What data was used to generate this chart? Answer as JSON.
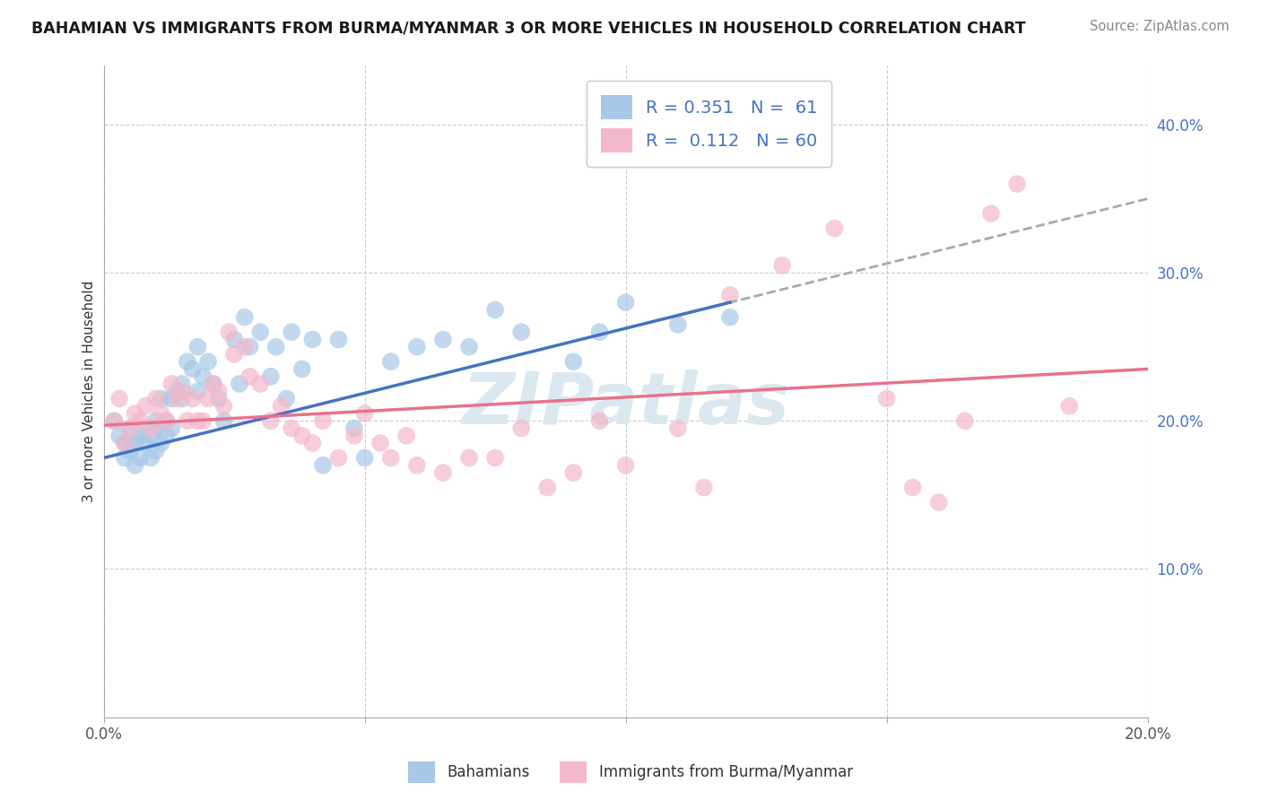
{
  "title": "BAHAMIAN VS IMMIGRANTS FROM BURMA/MYANMAR 3 OR MORE VEHICLES IN HOUSEHOLD CORRELATION CHART",
  "source": "Source: ZipAtlas.com",
  "ylabel": "3 or more Vehicles in Household",
  "x_min": 0.0,
  "x_max": 0.2,
  "y_min": 0.0,
  "y_max": 0.44,
  "x_ticks": [
    0.0,
    0.05,
    0.1,
    0.15,
    0.2
  ],
  "x_tick_labels": [
    "0.0%",
    "",
    "",
    "",
    "20.0%"
  ],
  "y_ticks_right": [
    0.1,
    0.2,
    0.3,
    0.4
  ],
  "y_tick_labels_right": [
    "10.0%",
    "20.0%",
    "30.0%",
    "40.0%"
  ],
  "blue_color": "#a8c8e8",
  "pink_color": "#f4b8cc",
  "blue_line_color": "#4472c4",
  "pink_line_color": "#e8728c",
  "legend_blue_label": "R = 0.351   N =  61",
  "legend_pink_label": "R =  0.112   N = 60",
  "legend_bottom_blue": "Bahamians",
  "legend_bottom_pink": "Immigrants from Burma/Myanmar",
  "watermark_text": "ZIPatlas",
  "watermark_color": "#dce8f0",
  "background_color": "#ffffff",
  "grid_color": "#cccccc",
  "blue_scatter_x": [
    0.002,
    0.003,
    0.004,
    0.004,
    0.005,
    0.005,
    0.006,
    0.006,
    0.007,
    0.007,
    0.008,
    0.008,
    0.009,
    0.009,
    0.01,
    0.01,
    0.01,
    0.011,
    0.011,
    0.012,
    0.012,
    0.013,
    0.013,
    0.014,
    0.015,
    0.015,
    0.016,
    0.017,
    0.018,
    0.018,
    0.019,
    0.02,
    0.021,
    0.022,
    0.023,
    0.025,
    0.026,
    0.027,
    0.028,
    0.03,
    0.032,
    0.033,
    0.035,
    0.036,
    0.038,
    0.04,
    0.042,
    0.045,
    0.048,
    0.05,
    0.055,
    0.06,
    0.065,
    0.07,
    0.075,
    0.08,
    0.09,
    0.095,
    0.1,
    0.11,
    0.12
  ],
  "blue_scatter_y": [
    0.2,
    0.19,
    0.185,
    0.175,
    0.18,
    0.195,
    0.17,
    0.185,
    0.175,
    0.19,
    0.195,
    0.185,
    0.175,
    0.19,
    0.18,
    0.195,
    0.2,
    0.185,
    0.215,
    0.19,
    0.2,
    0.195,
    0.215,
    0.22,
    0.215,
    0.225,
    0.24,
    0.235,
    0.25,
    0.22,
    0.23,
    0.24,
    0.225,
    0.215,
    0.2,
    0.255,
    0.225,
    0.27,
    0.25,
    0.26,
    0.23,
    0.25,
    0.215,
    0.26,
    0.235,
    0.255,
    0.17,
    0.255,
    0.195,
    0.175,
    0.24,
    0.25,
    0.255,
    0.25,
    0.275,
    0.26,
    0.24,
    0.26,
    0.28,
    0.265,
    0.27
  ],
  "pink_scatter_x": [
    0.002,
    0.003,
    0.004,
    0.005,
    0.006,
    0.007,
    0.008,
    0.009,
    0.01,
    0.011,
    0.012,
    0.013,
    0.014,
    0.015,
    0.016,
    0.017,
    0.018,
    0.019,
    0.02,
    0.021,
    0.022,
    0.023,
    0.024,
    0.025,
    0.027,
    0.028,
    0.03,
    0.032,
    0.034,
    0.036,
    0.038,
    0.04,
    0.042,
    0.045,
    0.048,
    0.05,
    0.053,
    0.055,
    0.058,
    0.06,
    0.065,
    0.07,
    0.075,
    0.08,
    0.085,
    0.09,
    0.095,
    0.1,
    0.11,
    0.115,
    0.12,
    0.13,
    0.14,
    0.15,
    0.155,
    0.16,
    0.165,
    0.17,
    0.175,
    0.185
  ],
  "pink_scatter_y": [
    0.2,
    0.215,
    0.185,
    0.195,
    0.205,
    0.2,
    0.21,
    0.195,
    0.215,
    0.205,
    0.2,
    0.225,
    0.215,
    0.22,
    0.2,
    0.215,
    0.2,
    0.2,
    0.215,
    0.225,
    0.22,
    0.21,
    0.26,
    0.245,
    0.25,
    0.23,
    0.225,
    0.2,
    0.21,
    0.195,
    0.19,
    0.185,
    0.2,
    0.175,
    0.19,
    0.205,
    0.185,
    0.175,
    0.19,
    0.17,
    0.165,
    0.175,
    0.175,
    0.195,
    0.155,
    0.165,
    0.2,
    0.17,
    0.195,
    0.155,
    0.285,
    0.305,
    0.33,
    0.215,
    0.155,
    0.145,
    0.2,
    0.34,
    0.36,
    0.21
  ]
}
